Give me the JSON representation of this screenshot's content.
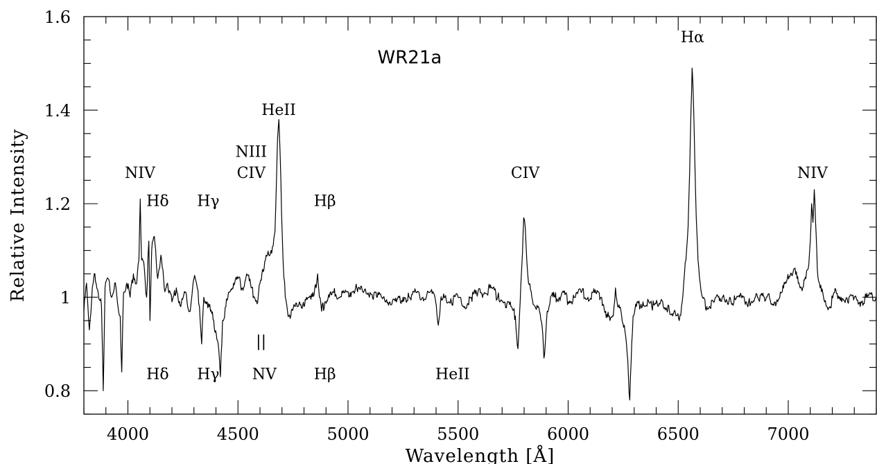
{
  "chart_data": {
    "type": "line",
    "title": "WR21a",
    "xlabel": "Wavelength [Å]",
    "ylabel": "Relative Intensity",
    "xlim": [
      3800,
      7400
    ],
    "ylim": [
      0.75,
      1.6
    ],
    "grid": false,
    "x_ticks": [
      4000,
      4500,
      5000,
      5500,
      6000,
      6500,
      7000
    ],
    "y_ticks": [
      {
        "value": 0.8,
        "label": "0.8"
      },
      {
        "value": 1.0,
        "label": "1"
      },
      {
        "value": 1.2,
        "label": "1.2"
      },
      {
        "value": 1.4,
        "label": "1.4"
      },
      {
        "value": 1.6,
        "label": "1.6"
      }
    ],
    "series": [
      {
        "points": [
          [
            3800,
            0.97
          ],
          [
            3812,
            1.03
          ],
          [
            3825,
            0.93
          ],
          [
            3838,
            1.02
          ],
          [
            3850,
            1.05
          ],
          [
            3865,
            1.01
          ],
          [
            3880,
            0.98
          ],
          [
            3888,
            0.8
          ],
          [
            3896,
            1.02
          ],
          [
            3910,
            1.04
          ],
          [
            3925,
            1.0
          ],
          [
            3940,
            1.03
          ],
          [
            3955,
            0.98
          ],
          [
            3965,
            0.96
          ],
          [
            3972,
            0.84
          ],
          [
            3980,
            1.01
          ],
          [
            3995,
            1.03
          ],
          [
            4010,
            1.0
          ],
          [
            4025,
            1.05
          ],
          [
            4040,
            1.03
          ],
          [
            4050,
            1.08
          ],
          [
            4056,
            1.21
          ],
          [
            4062,
            1.08
          ],
          [
            4075,
            1.06
          ],
          [
            4085,
            1.0
          ],
          [
            4095,
            1.12
          ],
          [
            4100,
            0.95
          ],
          [
            4108,
            1.1
          ],
          [
            4120,
            1.13
          ],
          [
            4135,
            1.04
          ],
          [
            4150,
            1.09
          ],
          [
            4165,
            1.02
          ],
          [
            4180,
            1.03
          ],
          [
            4200,
            0.99
          ],
          [
            4220,
            1.02
          ],
          [
            4240,
            0.98
          ],
          [
            4260,
            1.01
          ],
          [
            4280,
            0.97
          ],
          [
            4300,
            1.04
          ],
          [
            4315,
            1.02
          ],
          [
            4325,
            0.98
          ],
          [
            4335,
            0.9
          ],
          [
            4345,
            1.0
          ],
          [
            4360,
            0.99
          ],
          [
            4375,
            0.97
          ],
          [
            4390,
            0.95
          ],
          [
            4410,
            0.9
          ],
          [
            4420,
            0.83
          ],
          [
            4430,
            0.95
          ],
          [
            4445,
            0.98
          ],
          [
            4460,
            1.01
          ],
          [
            4480,
            1.03
          ],
          [
            4500,
            1.04
          ],
          [
            4520,
            1.02
          ],
          [
            4540,
            1.05
          ],
          [
            4560,
            1.02
          ],
          [
            4575,
            1.0
          ],
          [
            4590,
            0.99
          ],
          [
            4600,
            1.03
          ],
          [
            4612,
            1.06
          ],
          [
            4625,
            1.08
          ],
          [
            4640,
            1.09
          ],
          [
            4650,
            1.1
          ],
          [
            4660,
            1.11
          ],
          [
            4668,
            1.14
          ],
          [
            4675,
            1.25
          ],
          [
            4680,
            1.34
          ],
          [
            4686,
            1.38
          ],
          [
            4692,
            1.3
          ],
          [
            4698,
            1.18
          ],
          [
            4705,
            1.08
          ],
          [
            4715,
            1.0
          ],
          [
            4725,
            0.97
          ],
          [
            4740,
            0.96
          ],
          [
            4760,
            0.98
          ],
          [
            4780,
            0.99
          ],
          [
            4800,
            0.98
          ],
          [
            4820,
            1.0
          ],
          [
            4840,
            1.01
          ],
          [
            4855,
            1.02
          ],
          [
            4862,
            1.05
          ],
          [
            4870,
            1.0
          ],
          [
            4880,
            0.97
          ],
          [
            4895,
            0.99
          ],
          [
            4915,
            1.0
          ],
          [
            4935,
            1.01
          ],
          [
            4960,
            1.0
          ],
          [
            4985,
            1.01
          ],
          [
            5010,
            1.01
          ],
          [
            5040,
            1.02
          ],
          [
            5070,
            1.01
          ],
          [
            5100,
            1.01
          ],
          [
            5130,
            1.0
          ],
          [
            5160,
            1.0
          ],
          [
            5190,
            0.99
          ],
          [
            5220,
            0.99
          ],
          [
            5250,
            1.0
          ],
          [
            5280,
            1.0
          ],
          [
            5310,
            1.01
          ],
          [
            5340,
            1.0
          ],
          [
            5370,
            1.01
          ],
          [
            5395,
            1.0
          ],
          [
            5410,
            0.94
          ],
          [
            5420,
            0.99
          ],
          [
            5440,
            1.0
          ],
          [
            5470,
            0.99
          ],
          [
            5500,
            1.0
          ],
          [
            5530,
            0.98
          ],
          [
            5560,
            1.0
          ],
          [
            5590,
            1.01
          ],
          [
            5620,
            1.01
          ],
          [
            5650,
            1.02
          ],
          [
            5680,
            1.0
          ],
          [
            5710,
            0.99
          ],
          [
            5740,
            0.98
          ],
          [
            5760,
            0.96
          ],
          [
            5772,
            0.89
          ],
          [
            5782,
            0.99
          ],
          [
            5790,
            1.07
          ],
          [
            5798,
            1.17
          ],
          [
            5805,
            1.15
          ],
          [
            5812,
            1.08
          ],
          [
            5820,
            1.03
          ],
          [
            5835,
            1.0
          ],
          [
            5850,
            0.98
          ],
          [
            5870,
            0.97
          ],
          [
            5885,
            0.92
          ],
          [
            5890,
            0.87
          ],
          [
            5896,
            0.9
          ],
          [
            5905,
            0.97
          ],
          [
            5920,
            1.0
          ],
          [
            5940,
            1.0
          ],
          [
            5960,
            1.0
          ],
          [
            5980,
            1.01
          ],
          [
            6000,
            0.99
          ],
          [
            6030,
            1.0
          ],
          [
            6060,
            1.01
          ],
          [
            6090,
            1.0
          ],
          [
            6120,
            1.01
          ],
          [
            6150,
            1.0
          ],
          [
            6170,
            0.97
          ],
          [
            6190,
            0.95
          ],
          [
            6205,
            0.96
          ],
          [
            6215,
            1.02
          ],
          [
            6225,
            0.98
          ],
          [
            6240,
            0.97
          ],
          [
            6255,
            0.94
          ],
          [
            6268,
            0.88
          ],
          [
            6274,
            0.83
          ],
          [
            6280,
            0.78
          ],
          [
            6286,
            0.86
          ],
          [
            6295,
            0.96
          ],
          [
            6310,
            0.98
          ],
          [
            6340,
            0.99
          ],
          [
            6380,
            0.98
          ],
          [
            6420,
            0.99
          ],
          [
            6460,
            0.97
          ],
          [
            6490,
            0.96
          ],
          [
            6505,
            0.95
          ],
          [
            6515,
            0.98
          ],
          [
            6525,
            1.03
          ],
          [
            6535,
            1.08
          ],
          [
            6545,
            1.15
          ],
          [
            6552,
            1.27
          ],
          [
            6558,
            1.4
          ],
          [
            6563,
            1.49
          ],
          [
            6568,
            1.44
          ],
          [
            6575,
            1.3
          ],
          [
            6582,
            1.17
          ],
          [
            6590,
            1.08
          ],
          [
            6600,
            1.03
          ],
          [
            6610,
            1.0
          ],
          [
            6630,
            0.98
          ],
          [
            6660,
            0.99
          ],
          [
            6700,
            1.0
          ],
          [
            6740,
            0.99
          ],
          [
            6780,
            1.0
          ],
          [
            6820,
            0.99
          ],
          [
            6860,
            1.0
          ],
          [
            6900,
            1.0
          ],
          [
            6940,
            0.99
          ],
          [
            6970,
            1.01
          ],
          [
            6990,
            1.03
          ],
          [
            7010,
            1.05
          ],
          [
            7025,
            1.06
          ],
          [
            7040,
            1.04
          ],
          [
            7060,
            1.02
          ],
          [
            7080,
            1.04
          ],
          [
            7090,
            1.06
          ],
          [
            7100,
            1.12
          ],
          [
            7106,
            1.2
          ],
          [
            7112,
            1.16
          ],
          [
            7118,
            1.23
          ],
          [
            7124,
            1.16
          ],
          [
            7132,
            1.06
          ],
          [
            7145,
            1.02
          ],
          [
            7165,
            0.99
          ],
          [
            7190,
            0.98
          ],
          [
            7210,
            1.01
          ],
          [
            7240,
            1.0
          ],
          [
            7270,
            0.99
          ],
          [
            7300,
            1.0
          ],
          [
            7330,
            0.99
          ],
          [
            7360,
            1.0
          ],
          [
            7400,
            1.0
          ]
        ]
      }
    ],
    "annotations": [
      {
        "text": "WR21a",
        "x": 5280,
        "y": 1.5,
        "role": "title"
      },
      {
        "text": "NIV",
        "x": 4055,
        "y": 1.255
      },
      {
        "text": "Hδ",
        "x": 4135,
        "y": 1.195
      },
      {
        "text": "Hγ",
        "x": 4365,
        "y": 1.195
      },
      {
        "text": "NIII",
        "x": 4560,
        "y": 1.3
      },
      {
        "text": "CIV",
        "x": 4560,
        "y": 1.255
      },
      {
        "text": "HeII",
        "x": 4685,
        "y": 1.39
      },
      {
        "text": "Hβ",
        "x": 4895,
        "y": 1.195
      },
      {
        "text": "CIV",
        "x": 5805,
        "y": 1.255
      },
      {
        "text": "Hα",
        "x": 6565,
        "y": 1.545
      },
      {
        "text": "NIV",
        "x": 7110,
        "y": 1.255
      },
      {
        "text": "Hδ",
        "x": 4135,
        "y": 0.825
      },
      {
        "text": "Hγ",
        "x": 4365,
        "y": 0.825
      },
      {
        "text": "NV",
        "x": 4620,
        "y": 0.825
      },
      {
        "text": "Hβ",
        "x": 4895,
        "y": 0.825
      },
      {
        "text": "HeII",
        "x": 5475,
        "y": 0.825
      }
    ],
    "markers": [
      {
        "text": "||",
        "x": 4605,
        "y": 0.895
      }
    ]
  }
}
